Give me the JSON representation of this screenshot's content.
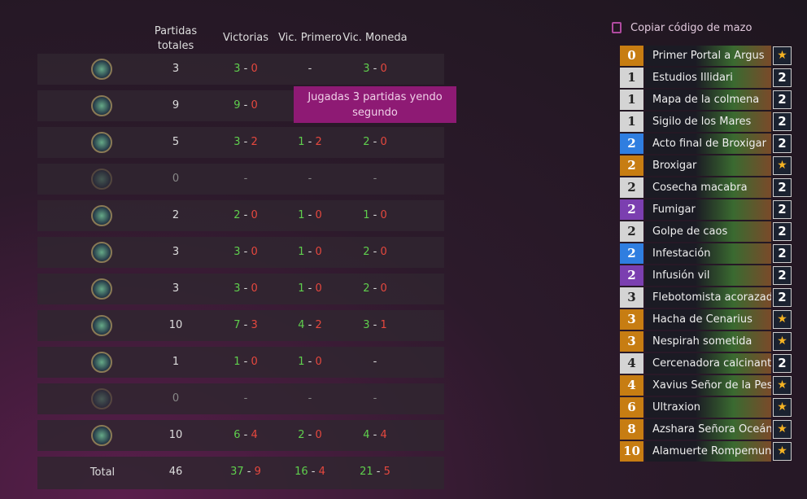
{
  "table": {
    "headers": [
      "Partidas totales",
      "Victorias",
      "Vic. Primero",
      "Vic. Moneda"
    ],
    "separator": "-",
    "rows": [
      {
        "total": 3,
        "victorias": {
          "w": 3,
          "l": 0
        },
        "primero": "-",
        "moneda": {
          "w": 3,
          "l": 0
        }
      },
      {
        "total": 9,
        "victorias": {
          "w": 9,
          "l": 0
        },
        "primero": null,
        "moneda": null
      },
      {
        "total": 5,
        "victorias": {
          "w": 3,
          "l": 2
        },
        "primero": {
          "w": 1,
          "l": 2
        },
        "moneda": {
          "w": 2,
          "l": 0
        }
      },
      {
        "total": 0,
        "victorias": "-",
        "primero": "-",
        "moneda": "-"
      },
      {
        "total": 2,
        "victorias": {
          "w": 2,
          "l": 0
        },
        "primero": {
          "w": 1,
          "l": 0
        },
        "moneda": {
          "w": 1,
          "l": 0
        }
      },
      {
        "total": 3,
        "victorias": {
          "w": 3,
          "l": 0
        },
        "primero": {
          "w": 1,
          "l": 0
        },
        "moneda": {
          "w": 2,
          "l": 0
        }
      },
      {
        "total": 3,
        "victorias": {
          "w": 3,
          "l": 0
        },
        "primero": {
          "w": 1,
          "l": 0
        },
        "moneda": {
          "w": 2,
          "l": 0
        }
      },
      {
        "total": 10,
        "victorias": {
          "w": 7,
          "l": 3
        },
        "primero": {
          "w": 4,
          "l": 2
        },
        "moneda": {
          "w": 3,
          "l": 1
        }
      },
      {
        "total": 1,
        "victorias": {
          "w": 1,
          "l": 0
        },
        "primero": {
          "w": 1,
          "l": 0
        },
        "moneda": "-"
      },
      {
        "total": 0,
        "victorias": "-",
        "primero": "-",
        "moneda": "-"
      },
      {
        "total": 10,
        "victorias": {
          "w": 6,
          "l": 4
        },
        "primero": {
          "w": 2,
          "l": 0
        },
        "moneda": {
          "w": 4,
          "l": 4
        }
      }
    ],
    "total_row": {
      "label": "Total",
      "total": 46,
      "victorias": {
        "w": 37,
        "l": 9
      },
      "primero": {
        "w": 16,
        "l": 4
      },
      "moneda": {
        "w": 21,
        "l": 5
      }
    }
  },
  "tooltip": "Jugadas 3 partidas yendo segundo",
  "deck": {
    "copy_label": "Copiar código de mazo",
    "cards": [
      {
        "cost": 0,
        "name": "Primer Portal a Argus",
        "count": null,
        "rarity": "legendary"
      },
      {
        "cost": 1,
        "name": "Estudios Illidari",
        "count": 2,
        "rarity": "common"
      },
      {
        "cost": 1,
        "name": "Mapa de la colmena",
        "count": 2,
        "rarity": "common"
      },
      {
        "cost": 1,
        "name": "Sigilo de los Mares",
        "count": 2,
        "rarity": "common"
      },
      {
        "cost": 2,
        "name": "Acto final de Broxigar",
        "count": 2,
        "rarity": "rare"
      },
      {
        "cost": 2,
        "name": "Broxigar",
        "count": null,
        "rarity": "legendary"
      },
      {
        "cost": 2,
        "name": "Cosecha macabra",
        "count": 2,
        "rarity": "common"
      },
      {
        "cost": 2,
        "name": "Fumigar",
        "count": 2,
        "rarity": "epic"
      },
      {
        "cost": 2,
        "name": "Golpe de caos",
        "count": 2,
        "rarity": "common"
      },
      {
        "cost": 2,
        "name": "Infestación",
        "count": 2,
        "rarity": "rare"
      },
      {
        "cost": 2,
        "name": "Infusión vil",
        "count": 2,
        "rarity": "epic"
      },
      {
        "cost": 3,
        "name": "Flebotomista acorazado",
        "count": 2,
        "rarity": "common"
      },
      {
        "cost": 3,
        "name": "Hacha de Cenarius",
        "count": null,
        "rarity": "legendary"
      },
      {
        "cost": 3,
        "name": "Nespirah sometida",
        "count": null,
        "rarity": "legendary"
      },
      {
        "cost": 4,
        "name": "Cercenadora calcinante",
        "count": 2,
        "rarity": "common"
      },
      {
        "cost": 4,
        "name": "Xavius Señor de la Pesad",
        "count": null,
        "rarity": "legendary"
      },
      {
        "cost": 6,
        "name": "Ultraxion",
        "count": null,
        "rarity": "legendary"
      },
      {
        "cost": 8,
        "name": "Azshara Señora Oceánic",
        "count": null,
        "rarity": "legendary"
      },
      {
        "cost": 10,
        "name": "Alamuerte Rompemund",
        "count": null,
        "rarity": "legendary"
      }
    ]
  }
}
